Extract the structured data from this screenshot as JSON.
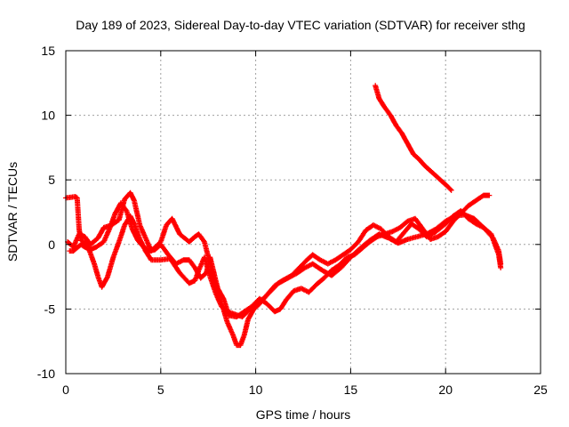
{
  "chart_data": {
    "type": "scatter",
    "title": "Day 189 of 2023, Sidereal Day-to-day VTEC variation (SDTVAR) for receiver sthg",
    "xlabel": "GPS time / hours",
    "ylabel": "SDTVAR / TECUs",
    "xlim": [
      0,
      25
    ],
    "ylim": [
      -10,
      15
    ],
    "xticks": [
      0,
      5,
      10,
      15,
      20,
      25
    ],
    "yticks": [
      -10,
      -5,
      0,
      5,
      10,
      15
    ],
    "grid": true,
    "marker": "+",
    "color": "#ff0000",
    "series": [
      {
        "name": "trace-1",
        "points": [
          [
            0.0,
            3.6
          ],
          [
            0.5,
            3.7
          ],
          [
            0.6,
            3.6
          ],
          [
            0.7,
            1.2
          ],
          [
            0.8,
            0.3
          ],
          [
            1.0,
            0.2
          ],
          [
            1.2,
            -0.3
          ],
          [
            1.5,
            -1.5
          ],
          [
            1.7,
            -2.5
          ],
          [
            1.9,
            -3.3
          ],
          [
            2.2,
            -2.5
          ],
          [
            2.5,
            -1.0
          ],
          [
            2.8,
            0.2
          ],
          [
            3.1,
            1.5
          ],
          [
            3.4,
            2.2
          ],
          [
            3.6,
            1.6
          ],
          [
            3.9,
            0.4
          ],
          [
            4.2,
            -0.5
          ],
          [
            4.5,
            -1.2
          ],
          [
            5.0,
            -1.2
          ],
          [
            5.5,
            -1.1
          ],
          [
            6.0,
            -2.2
          ],
          [
            6.5,
            -3.0
          ],
          [
            6.8,
            -2.8
          ],
          [
            7.0,
            -2.0
          ],
          [
            7.3,
            -1.0
          ],
          [
            7.6,
            -2.5
          ],
          [
            7.9,
            -3.8
          ],
          [
            8.2,
            -4.8
          ],
          [
            8.5,
            -5.2
          ],
          [
            8.9,
            -5.4
          ],
          [
            9.3,
            -5.6
          ],
          [
            9.7,
            -5.0
          ],
          [
            10.0,
            -4.6
          ],
          [
            10.4,
            -4.2
          ],
          [
            10.8,
            -3.6
          ],
          [
            11.2,
            -3.0
          ],
          [
            11.7,
            -2.6
          ],
          [
            12.2,
            -2.2
          ],
          [
            12.6,
            -1.8
          ],
          [
            13.0,
            -1.5
          ],
          [
            13.5,
            -2.0
          ],
          [
            14.0,
            -2.4
          ],
          [
            14.5,
            -1.8
          ],
          [
            15.0,
            -1.0
          ],
          [
            15.5,
            -0.3
          ],
          [
            16.0,
            0.3
          ],
          [
            16.5,
            0.8
          ],
          [
            17.0,
            0.5
          ],
          [
            17.5,
            0.1
          ],
          [
            18.0,
            0.4
          ],
          [
            18.5,
            0.6
          ],
          [
            19.0,
            0.8
          ],
          [
            19.5,
            1.2
          ],
          [
            20.0,
            1.8
          ],
          [
            20.5,
            2.2
          ],
          [
            21.0,
            2.3
          ],
          [
            21.5,
            2.0
          ],
          [
            22.0,
            1.3
          ],
          [
            22.5,
            0.5
          ],
          [
            22.8,
            -0.5
          ],
          [
            22.9,
            -1.5
          ]
        ]
      },
      {
        "name": "trace-2",
        "points": [
          [
            0.1,
            0.2
          ],
          [
            0.4,
            -0.2
          ],
          [
            0.7,
            0.8
          ],
          [
            1.0,
            0.6
          ],
          [
            1.3,
            0.0
          ],
          [
            1.7,
            0.5
          ],
          [
            2.0,
            1.3
          ],
          [
            2.4,
            1.5
          ],
          [
            2.8,
            1.9
          ],
          [
            3.1,
            3.5
          ],
          [
            3.4,
            4.0
          ],
          [
            3.6,
            3.4
          ],
          [
            3.9,
            1.5
          ],
          [
            4.2,
            0.5
          ],
          [
            4.5,
            -0.5
          ],
          [
            5.0,
            0.2
          ],
          [
            5.3,
            1.5
          ],
          [
            5.6,
            2.0
          ],
          [
            6.0,
            0.8
          ],
          [
            6.5,
            0.2
          ],
          [
            6.8,
            0.6
          ],
          [
            7.0,
            0.8
          ],
          [
            7.3,
            0.2
          ],
          [
            7.6,
            -1.5
          ],
          [
            7.9,
            -3.2
          ],
          [
            8.1,
            -4.3
          ],
          [
            8.3,
            -5.0
          ],
          [
            8.5,
            -6.0
          ],
          [
            8.8,
            -7.0
          ],
          [
            9.0,
            -7.8
          ],
          [
            9.2,
            -7.8
          ],
          [
            9.4,
            -7.0
          ],
          [
            9.6,
            -5.8
          ],
          [
            9.9,
            -5.0
          ],
          [
            10.2,
            -4.6
          ],
          [
            10.6,
            -3.9
          ],
          [
            11.0,
            -3.2
          ],
          [
            11.4,
            -2.8
          ],
          [
            11.9,
            -2.4
          ],
          [
            12.3,
            -1.8
          ],
          [
            12.7,
            -1.2
          ],
          [
            13.0,
            -0.8
          ],
          [
            13.4,
            -1.2
          ],
          [
            13.8,
            -1.5
          ],
          [
            14.2,
            -1.2
          ],
          [
            14.6,
            -0.8
          ],
          [
            15.0,
            -0.4
          ],
          [
            15.4,
            0.2
          ],
          [
            15.8,
            1.1
          ],
          [
            16.2,
            1.5
          ],
          [
            16.6,
            1.2
          ],
          [
            17.0,
            0.6
          ],
          [
            17.4,
            0.2
          ],
          [
            17.8,
            0.9
          ],
          [
            18.2,
            1.6
          ],
          [
            18.6,
            1.2
          ],
          [
            19.0,
            0.6
          ],
          [
            19.5,
            1.0
          ],
          [
            20.0,
            1.6
          ],
          [
            20.4,
            2.2
          ],
          [
            20.8,
            2.6
          ],
          [
            21.2,
            2.0
          ],
          [
            21.6,
            1.6
          ],
          [
            22.0,
            1.3
          ],
          [
            22.4,
            0.8
          ],
          [
            22.6,
            0.0
          ],
          [
            22.8,
            -0.8
          ],
          [
            22.9,
            -1.8
          ]
        ]
      },
      {
        "name": "trace-3",
        "points": [
          [
            0.2,
            -0.5
          ],
          [
            0.4,
            -0.5
          ],
          [
            0.8,
            0.0
          ],
          [
            1.0,
            -0.2
          ],
          [
            1.3,
            -0.4
          ],
          [
            1.6,
            -0.2
          ],
          [
            2.0,
            0.2
          ],
          [
            2.3,
            1.2
          ],
          [
            2.6,
            2.4
          ],
          [
            2.9,
            3.2
          ],
          [
            3.2,
            2.6
          ],
          [
            3.5,
            1.2
          ],
          [
            3.8,
            0.3
          ],
          [
            4.1,
            -0.2
          ],
          [
            4.4,
            -0.5
          ],
          [
            4.7,
            -0.4
          ],
          [
            5.0,
            0.0
          ],
          [
            5.4,
            -0.8
          ],
          [
            5.8,
            -1.5
          ],
          [
            6.2,
            -1.2
          ],
          [
            6.5,
            -1.2
          ],
          [
            6.8,
            -1.8
          ],
          [
            7.1,
            -2.6
          ],
          [
            7.4,
            -2.2
          ],
          [
            7.6,
            -1.0
          ],
          [
            7.8,
            -2.2
          ],
          [
            8.0,
            -3.4
          ],
          [
            8.3,
            -4.2
          ],
          [
            8.6,
            -5.5
          ],
          [
            9.0,
            -5.6
          ],
          [
            9.4,
            -5.2
          ],
          [
            9.8,
            -4.8
          ],
          [
            10.2,
            -4.2
          ],
          [
            10.6,
            -4.6
          ],
          [
            11.0,
            -5.2
          ],
          [
            11.3,
            -5.0
          ],
          [
            11.6,
            -4.3
          ],
          [
            12.0,
            -3.6
          ],
          [
            12.4,
            -3.4
          ],
          [
            12.8,
            -3.7
          ],
          [
            13.2,
            -3.1
          ],
          [
            13.6,
            -2.6
          ],
          [
            14.0,
            -2.0
          ],
          [
            14.4,
            -1.6
          ],
          [
            14.8,
            -1.0
          ],
          [
            15.2,
            -0.8
          ],
          [
            15.6,
            -0.3
          ],
          [
            16.0,
            0.2
          ],
          [
            16.4,
            0.6
          ],
          [
            16.8,
            0.8
          ],
          [
            17.2,
            1.0
          ],
          [
            17.6,
            1.3
          ],
          [
            18.0,
            1.8
          ],
          [
            18.4,
            2.0
          ],
          [
            18.8,
            1.2
          ],
          [
            19.2,
            0.4
          ],
          [
            19.6,
            0.6
          ],
          [
            20.0,
            1.0
          ],
          [
            20.4,
            1.8
          ],
          [
            20.8,
            2.4
          ],
          [
            21.2,
            3.0
          ],
          [
            21.6,
            3.4
          ],
          [
            22.0,
            3.8
          ],
          [
            22.3,
            3.8
          ]
        ]
      },
      {
        "name": "trace-4",
        "points": [
          [
            16.3,
            12.3
          ],
          [
            16.5,
            11.3
          ],
          [
            16.8,
            10.6
          ],
          [
            17.1,
            10.0
          ],
          [
            17.4,
            9.2
          ],
          [
            17.7,
            8.6
          ],
          [
            18.0,
            7.8
          ],
          [
            18.3,
            7.0
          ],
          [
            18.6,
            6.6
          ],
          [
            18.9,
            6.1
          ],
          [
            19.2,
            5.7
          ],
          [
            19.5,
            5.3
          ],
          [
            19.8,
            4.9
          ],
          [
            20.1,
            4.5
          ],
          [
            20.3,
            4.2
          ]
        ]
      }
    ]
  }
}
